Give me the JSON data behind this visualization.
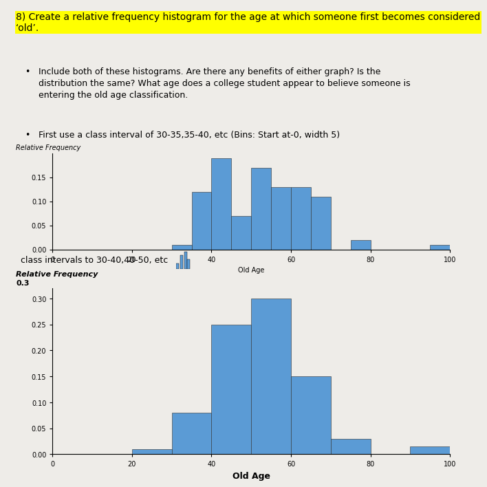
{
  "title_line1": "8) Create a relative frequency histogram for the age at which someone first becomes considered",
  "title_line2": "‘old’.",
  "bullet1_text": "Include both of these histograms. Are there any benefits of either graph? Is the\ndistribution the same? What age does a college student appear to believe someone is\nentering the old age classification.",
  "bullet2_text": "First use a class interval of 30-35,35-40, etc (Bins: Start at-0, width 5)",
  "bullet3_text": "class intervals to 30-40,40-50, etc",
  "ylabel_label": "Relative Frequency",
  "xlabel_label": "Old Age",
  "hist1_bin_edges": [
    0,
    5,
    10,
    15,
    20,
    25,
    30,
    35,
    40,
    45,
    50,
    55,
    60,
    65,
    70,
    75,
    80,
    85,
    90,
    95,
    100
  ],
  "hist1_heights": [
    0,
    0,
    0,
    0,
    0,
    0,
    0.01,
    0.12,
    0.19,
    0.07,
    0.17,
    0.13,
    0.13,
    0.11,
    0,
    0.02,
    0,
    0,
    0,
    0.01
  ],
  "hist2_bin_edges": [
    0,
    10,
    20,
    30,
    40,
    50,
    60,
    70,
    80,
    90,
    100
  ],
  "hist2_heights": [
    0,
    0,
    0.01,
    0.08,
    0.25,
    0.3,
    0.15,
    0.03,
    0,
    0.015
  ],
  "bar_color": "#5b9bd5",
  "bar_edgecolor": "#2f2f2f",
  "ylim1": [
    0,
    0.2
  ],
  "ylim2": [
    0,
    0.32
  ],
  "yticks1": [
    0,
    0.05,
    0.1,
    0.15
  ],
  "yticks2": [
    0,
    0.05,
    0.1,
    0.15,
    0.2,
    0.25,
    0.3
  ],
  "xticks": [
    0,
    20,
    40,
    60,
    80,
    100
  ],
  "bg_color": "#eeece8",
  "highlight_color": "#ffff00",
  "title_fontsize": 10,
  "body_fontsize": 9,
  "small_fontsize": 7,
  "tick_fontsize": 7
}
